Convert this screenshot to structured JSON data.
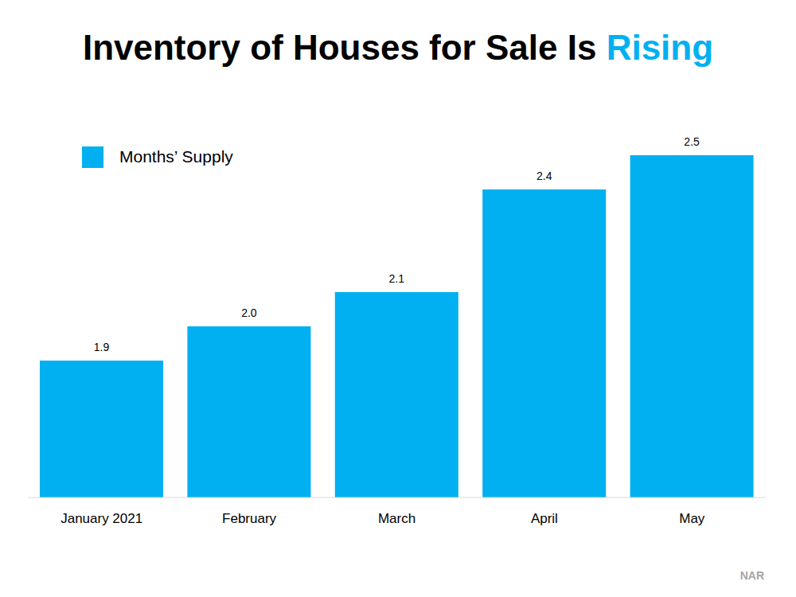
{
  "chart_data": {
    "type": "bar",
    "title": "Inventory of Houses for Sale Is Rising",
    "categories": [
      "January 2021",
      "February",
      "March",
      "April",
      "May"
    ],
    "series": [
      {
        "name": "Months’ Supply",
        "color": "#00b0f0",
        "values": [
          1.9,
          2.0,
          2.1,
          2.4,
          2.5
        ],
        "value_labels": [
          "1.9",
          "2.0",
          "2.1",
          "2.4",
          "2.5"
        ]
      }
    ],
    "ylim": [
      1.5,
      2.5
    ],
    "grid": false,
    "legend": "upper left",
    "data_labels": true,
    "tick_labels": "x",
    "source": "NAR"
  }
}
